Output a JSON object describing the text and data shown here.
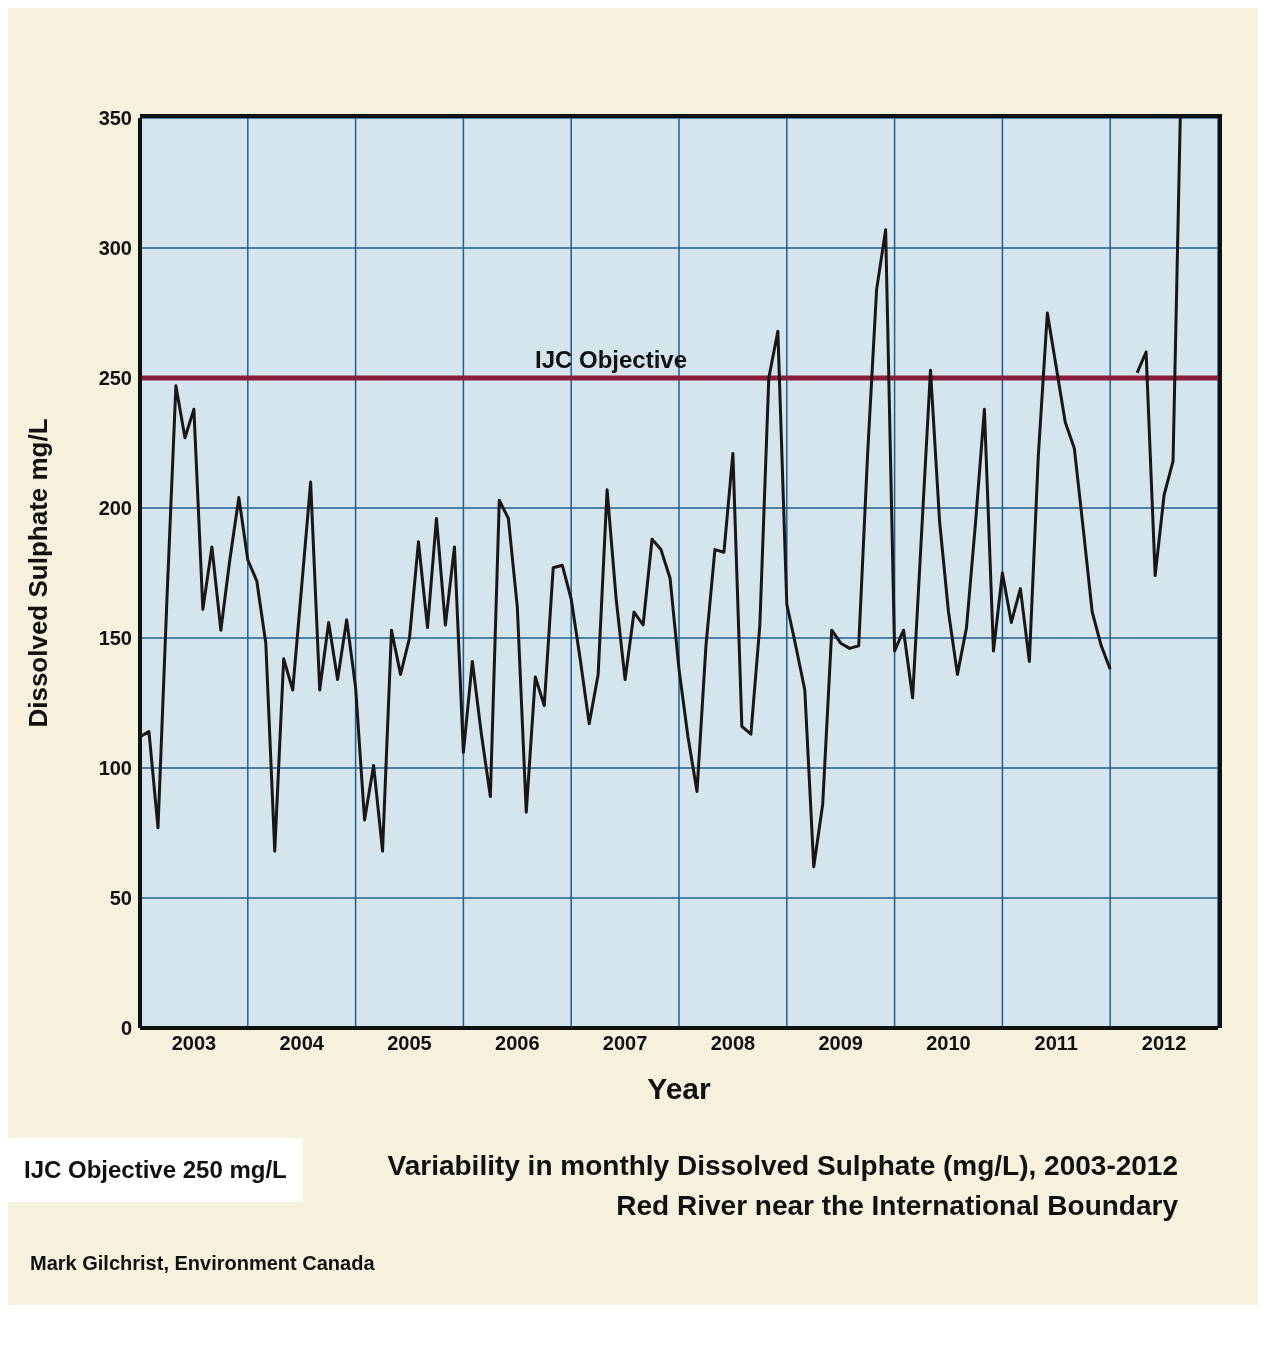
{
  "chart_data": {
    "type": "line",
    "title": "Variability in monthly Dissolved Sulphate (mg/L), 2003-2012",
    "subtitle": "Red River near the International Boundary",
    "xlabel": "Year",
    "ylabel": "Dissolved Sulphate mg/L",
    "annotations": [
      "IJC Objective 250 mg/L",
      "Mark Gilchrist, Environment Canada"
    ],
    "xlim": [
      2003,
      2013
    ],
    "xticks": [
      {
        "value": 2003,
        "label": null
      },
      {
        "value": 2003.5,
        "label": "2003"
      },
      {
        "value": 2004,
        "label": null
      },
      {
        "value": 2004.5,
        "label": "2004"
      },
      {
        "value": 2005,
        "label": null
      },
      {
        "value": 2005.5,
        "label": "2005"
      },
      {
        "value": 2006,
        "label": null
      },
      {
        "value": 2006.5,
        "label": "2006"
      },
      {
        "value": 2007,
        "label": null
      },
      {
        "value": 2007.5,
        "label": "2007"
      },
      {
        "value": 2008,
        "label": null
      },
      {
        "value": 2008.5,
        "label": "2008"
      },
      {
        "value": 2009,
        "label": null
      },
      {
        "value": 2009.5,
        "label": "2009"
      },
      {
        "value": 2010,
        "label": null
      },
      {
        "value": 2010.5,
        "label": "2010"
      },
      {
        "value": 2011,
        "label": null
      },
      {
        "value": 2011.5,
        "label": "2011"
      },
      {
        "value": 2012,
        "label": null
      },
      {
        "value": 2012.5,
        "label": "2012"
      },
      {
        "value": 2013,
        "label": null
      }
    ],
    "ylim": [
      0,
      350
    ],
    "yticks": [
      0,
      50,
      100,
      150,
      200,
      250,
      300,
      350
    ],
    "grid": true,
    "marker": "none",
    "line_style": "solid",
    "ref_lines": [
      {
        "axis": "y",
        "value": 250,
        "label": "IJC Objective",
        "color": "#8b1c3c"
      }
    ],
    "series": [
      {
        "color": "#1a1614",
        "values": [
          112,
          114,
          77,
          165,
          247,
          227,
          238,
          161,
          185,
          153,
          180,
          204,
          180,
          172,
          148,
          68,
          142,
          130,
          170,
          210,
          130,
          156,
          134,
          157,
          131,
          80,
          101,
          68,
          153,
          136,
          150,
          187,
          154,
          196,
          155,
          185,
          106,
          141,
          113,
          89,
          203,
          196,
          162,
          83,
          135,
          124,
          177,
          178,
          165,
          142,
          117,
          136,
          207,
          165,
          134,
          160,
          155,
          188,
          184,
          173,
          138,
          112,
          91,
          147,
          184,
          183,
          221,
          116,
          113,
          155,
          250,
          268,
          163,
          147,
          130,
          62,
          86,
          153,
          148,
          146,
          147,
          221,
          284,
          307,
          145,
          153,
          127,
          190,
          253,
          195,
          160,
          136,
          154,
          194,
          238,
          145,
          175,
          156,
          169,
          141,
          220,
          275,
          254,
          233,
          223,
          192,
          160,
          147,
          138,
          null,
          null,
          252,
          260,
          174,
          205,
          218,
          350
        ],
        "x": [
          2003,
          2003.083,
          2003.167,
          2003.25,
          2003.333,
          2003.417,
          2003.5,
          2003.583,
          2003.667,
          2003.75,
          2003.833,
          2003.917,
          2004,
          2004.083,
          2004.167,
          2004.25,
          2004.333,
          2004.417,
          2004.5,
          2004.583,
          2004.667,
          2004.75,
          2004.833,
          2004.917,
          2005,
          2005.083,
          2005.167,
          2005.25,
          2005.333,
          2005.417,
          2005.5,
          2005.583,
          2005.667,
          2005.75,
          2005.833,
          2005.917,
          2006,
          2006.083,
          2006.167,
          2006.25,
          2006.333,
          2006.417,
          2006.5,
          2006.583,
          2006.667,
          2006.75,
          2006.833,
          2006.917,
          2007,
          2007.083,
          2007.167,
          2007.25,
          2007.333,
          2007.417,
          2007.5,
          2007.583,
          2007.667,
          2007.75,
          2007.833,
          2007.917,
          2008,
          2008.083,
          2008.167,
          2008.25,
          2008.333,
          2008.417,
          2008.5,
          2008.583,
          2008.667,
          2008.75,
          2008.833,
          2008.917,
          2009,
          2009.083,
          2009.167,
          2009.25,
          2009.333,
          2009.417,
          2009.5,
          2009.583,
          2009.667,
          2009.75,
          2009.833,
          2009.917,
          2010,
          2010.083,
          2010.167,
          2010.25,
          2010.333,
          2010.417,
          2010.5,
          2010.583,
          2010.667,
          2010.75,
          2010.833,
          2010.917,
          2011,
          2011.083,
          2011.167,
          2011.25,
          2011.333,
          2011.417,
          2011.5,
          2011.583,
          2011.667,
          2011.75,
          2011.833,
          2011.917,
          2012,
          2012.083,
          2012.167,
          2012.25,
          2012.333,
          2012.417,
          2012.5,
          2012.583,
          2012.65
        ]
      }
    ]
  }
}
